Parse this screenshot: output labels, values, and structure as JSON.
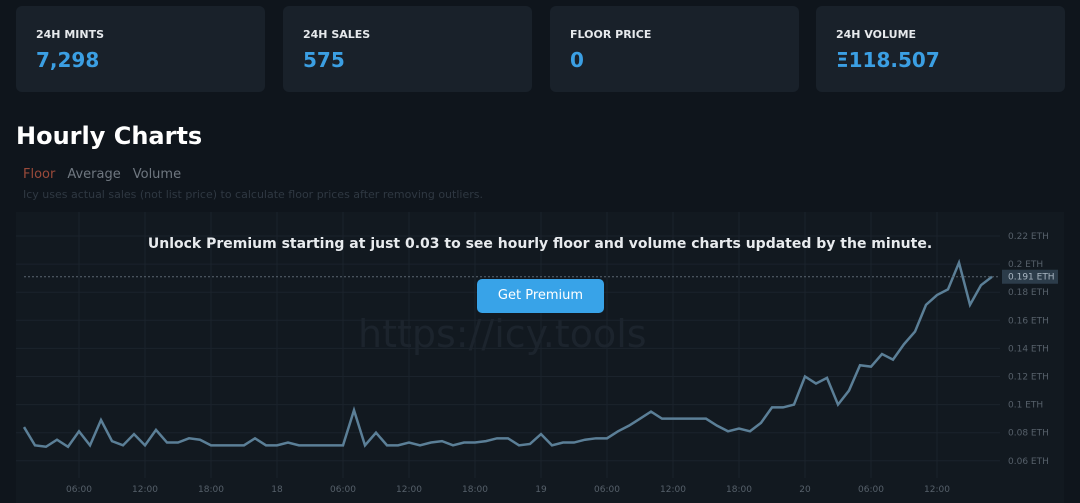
{
  "stats": [
    {
      "label": "24H MINTS",
      "value": "7,298"
    },
    {
      "label": "24H SALES",
      "value": "575"
    },
    {
      "label": "FLOOR PRICE",
      "value": "0"
    },
    {
      "label": "24H VOLUME",
      "value": "Ξ118.507"
    }
  ],
  "section_title": "Hourly Charts",
  "tabs": [
    "Floor",
    "Average",
    "Volume"
  ],
  "note": "Icy uses actual sales (not list price) to calculate floor prices after removing outliers.",
  "premium": {
    "message": "Unlock Premium starting at just 0.03 to see hourly floor and volume charts updated by the minute.",
    "button": "Get Premium"
  },
  "watermark": "https://icy.tools",
  "chart_data": {
    "type": "line",
    "color": "#5b7f97",
    "categories": [
      null,
      null,
      null,
      null,
      null,
      "06:00",
      null,
      null,
      null,
      null,
      null,
      "12:00",
      null,
      null,
      null,
      null,
      null,
      "18:00",
      null,
      null,
      null,
      null,
      null,
      "18",
      null,
      null,
      null,
      null,
      null,
      "06:00",
      null,
      null,
      null,
      null,
      null,
      "12:00",
      null,
      null,
      null,
      null,
      null,
      "18:00",
      null,
      null,
      null,
      null,
      null,
      "19",
      null,
      null,
      null,
      null,
      null,
      "06:00",
      null,
      null,
      null,
      null,
      null,
      "12:00",
      null,
      null,
      null,
      null,
      null,
      "18:00",
      null,
      null,
      null,
      null,
      null,
      "20",
      null,
      null,
      null,
      null,
      null,
      "06:00",
      null,
      null,
      null,
      null,
      null,
      "12:00",
      null,
      null,
      null,
      null,
      null
    ],
    "values": [
      0.084,
      0.071,
      0.07,
      0.075,
      0.07,
      0.081,
      0.071,
      0.089,
      0.074,
      0.071,
      0.079,
      0.071,
      0.082,
      0.073,
      0.073,
      0.076,
      0.075,
      0.071,
      0.071,
      0.071,
      0.071,
      0.076,
      0.071,
      0.071,
      0.073,
      0.071,
      0.071,
      0.071,
      0.071,
      0.071,
      0.096,
      0.071,
      0.08,
      0.071,
      0.071,
      0.073,
      0.071,
      0.073,
      0.074,
      0.071,
      0.073,
      0.073,
      0.074,
      0.076,
      0.076,
      0.071,
      0.072,
      0.079,
      0.071,
      0.073,
      0.073,
      0.075,
      0.076,
      0.076,
      0.081,
      0.085,
      0.09,
      0.095,
      0.09,
      0.09,
      0.09,
      0.09,
      0.09,
      0.085,
      0.081,
      0.083,
      0.081,
      0.087,
      0.098,
      0.098,
      0.1,
      0.12,
      0.115,
      0.119,
      0.1,
      0.11,
      0.128,
      0.127,
      0.136,
      0.132,
      0.143,
      0.152,
      0.171,
      0.178,
      0.182,
      0.201,
      0.171,
      0.185,
      0.191
    ],
    "ylim": [
      0.05,
      0.23
    ],
    "yticks": [
      {
        "value": 0.06,
        "label": "0.06 ETH"
      },
      {
        "value": 0.08,
        "label": "0.08 ETH"
      },
      {
        "value": 0.1,
        "label": "0.1 ETH"
      },
      {
        "value": 0.12,
        "label": "0.12 ETH"
      },
      {
        "value": 0.14,
        "label": "0.14 ETH"
      },
      {
        "value": 0.16,
        "label": "0.16 ETH"
      },
      {
        "value": 0.18,
        "label": "0.18 ETH"
      },
      {
        "value": 0.2,
        "label": "0.2 ETH"
      },
      {
        "value": 0.22,
        "label": "0.22 ETH"
      }
    ],
    "annotation": {
      "value": 0.191,
      "label": "0.191 ETH"
    },
    "grid": true
  }
}
